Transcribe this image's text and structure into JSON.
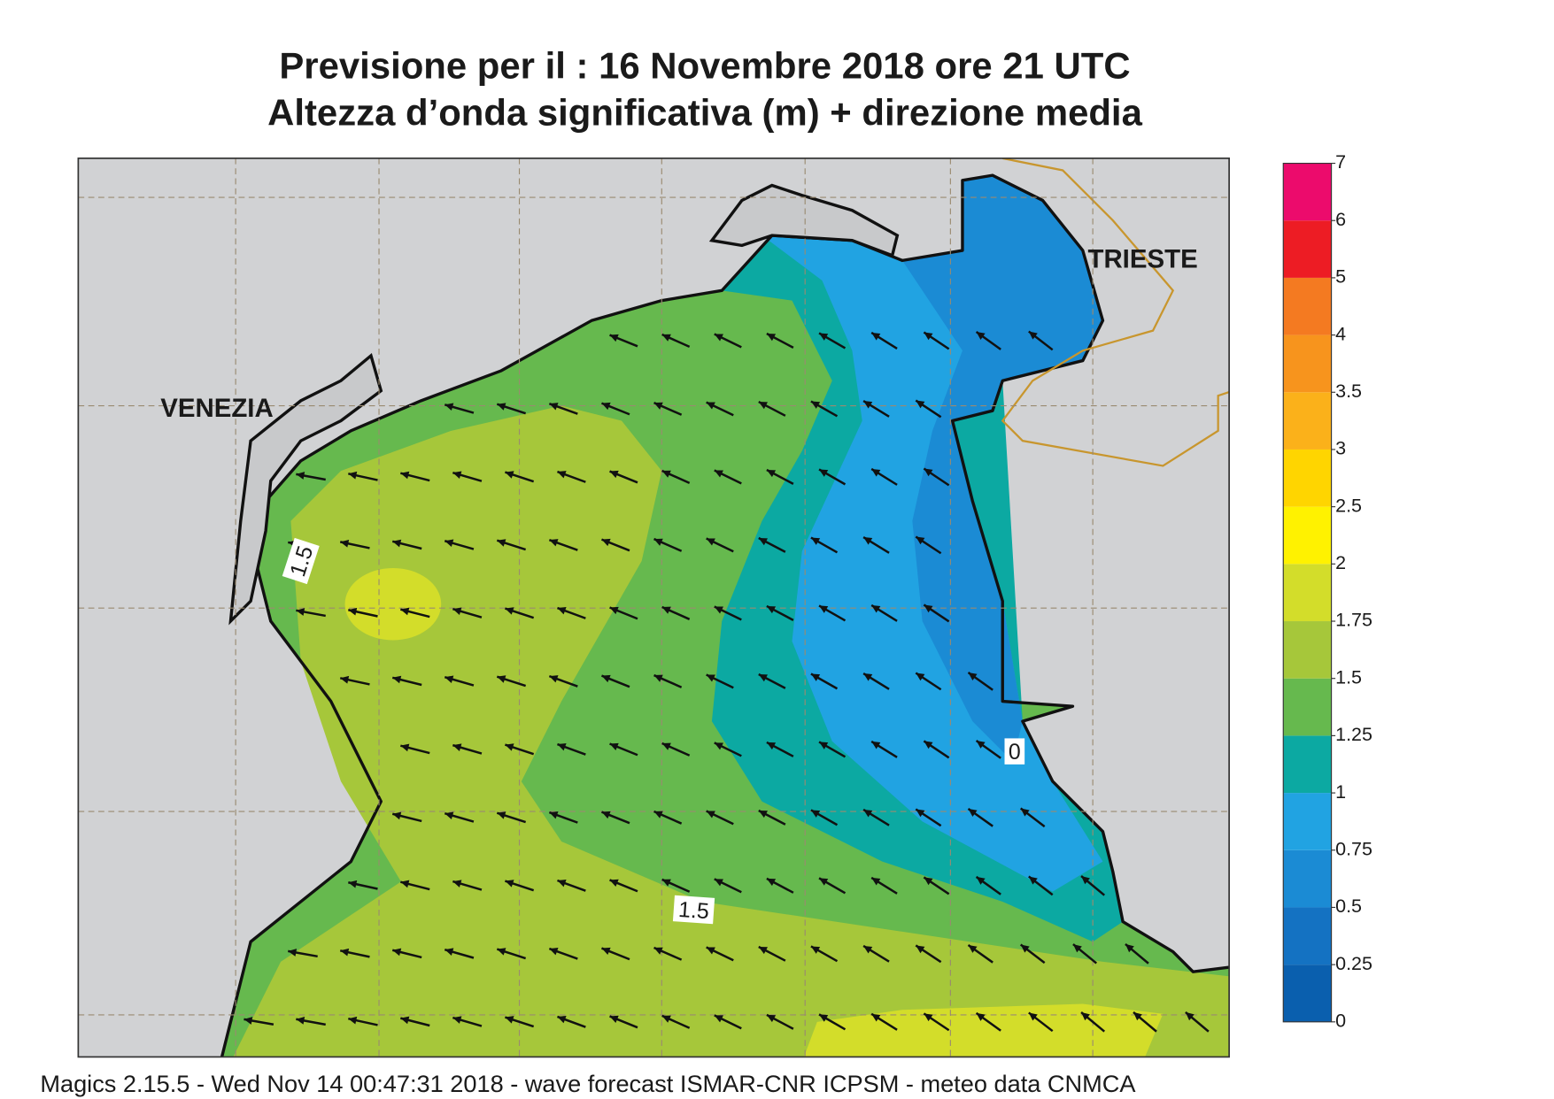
{
  "header": {
    "title_lines": [
      "Previsione per il  :  16 Novembre  2018   ore 21 UTC",
      "Altezza d’onda significativa (m) + direzione media"
    ]
  },
  "map": {
    "place_labels": [
      "VENEZIA",
      "TRIESTE"
    ],
    "contour_labels": [
      1.5,
      1.5,
      0
    ]
  },
  "colorbar": {
    "levels": [
      0,
      0.25,
      0.5,
      0.75,
      1,
      1.25,
      1.5,
      1.75,
      2,
      2.5,
      3,
      3.5,
      4,
      5,
      6,
      7
    ],
    "colors": [
      "#0a5fae",
      "#1472c2",
      "#1b8bd4",
      "#21a3e2",
      "#0ca9a2",
      "#66b94e",
      "#a6c73a",
      "#d3dd2a",
      "#fff200",
      "#ffd500",
      "#fbb11a",
      "#f7941d",
      "#f47a21",
      "#ed1c24",
      "#ec0b6c"
    ]
  },
  "footer": "Magics 2.15.5 - Wed Nov 14 00:47:31 2018 - wave forecast  ISMAR-CNR  ICPSM - meteo data   CNMCA"
}
